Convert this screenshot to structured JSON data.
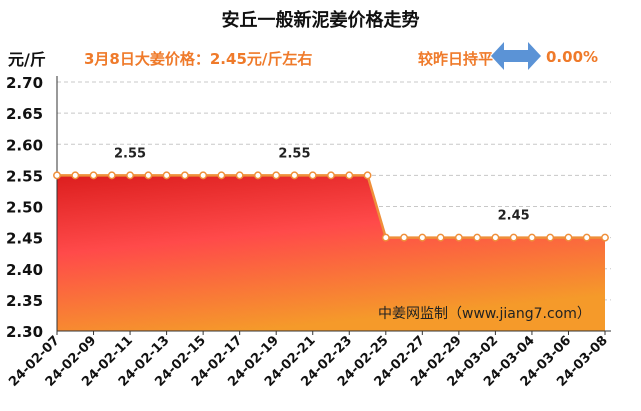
{
  "header": {
    "title": "安丘一般新泥姜价格走势",
    "unit": "元/斤",
    "price_note": "3月8日大姜价格：2.45元/斤左右",
    "change_label": "较昨日持平",
    "change_value": "0.00%",
    "arrow_icon": "left-right-arrow-icon",
    "arrow_color": "#5b93d6"
  },
  "watermark": "中姜网监制（www.jiang7.com）",
  "colors": {
    "line": "#ef8f3a",
    "fill_top": "#dc1e1e",
    "fill_mid": "#ff4a4a",
    "fill_bottom": "#f59a2a",
    "grid": "#c8c8c8",
    "accent": "#ef7a2a"
  },
  "chart_data": {
    "type": "area",
    "x": [
      "2024-02-07",
      "2024-02-08",
      "2024-02-09",
      "2024-02-10",
      "2024-02-11",
      "2024-02-12",
      "2024-02-13",
      "2024-02-14",
      "2024-02-15",
      "2024-02-16",
      "2024-02-17",
      "2024-02-18",
      "2024-02-19",
      "2024-02-20",
      "2024-02-21",
      "2024-02-22",
      "2024-02-23",
      "2024-02-24",
      "2024-02-25",
      "2024-02-26",
      "2024-02-27",
      "2024-02-28",
      "2024-02-29",
      "2024-03-01",
      "2024-03-02",
      "2024-03-03",
      "2024-03-04",
      "2024-03-05",
      "2024-03-06",
      "2024-03-07",
      "2024-03-08"
    ],
    "y": [
      2.55,
      2.55,
      2.55,
      2.55,
      2.55,
      2.55,
      2.55,
      2.55,
      2.55,
      2.55,
      2.55,
      2.55,
      2.55,
      2.55,
      2.55,
      2.55,
      2.55,
      2.55,
      2.45,
      2.45,
      2.45,
      2.45,
      2.45,
      2.45,
      2.45,
      2.45,
      2.45,
      2.45,
      2.45,
      2.45,
      2.45
    ],
    "x_tick_labels": [
      "24-02-07",
      "24-02-09",
      "24-02-11",
      "24-02-13",
      "24-02-15",
      "24-02-17",
      "24-02-19",
      "24-02-21",
      "24-02-23",
      "24-02-25",
      "24-02-27",
      "24-02-29",
      "24-03-02",
      "24-03-04",
      "24-03-06",
      "24-03-08"
    ],
    "y_tick_labels": [
      "2.30",
      "2.35",
      "2.40",
      "2.45",
      "2.50",
      "2.55",
      "2.60",
      "2.65",
      "2.70"
    ],
    "ylim": [
      2.3,
      2.7
    ],
    "annotations": [
      {
        "x": "2024-02-11",
        "y": 2.55,
        "text": "2.55"
      },
      {
        "x": "2024-02-20",
        "y": 2.55,
        "text": "2.55"
      },
      {
        "x": "2024-03-03",
        "y": 2.45,
        "text": "2.45"
      }
    ],
    "grid": true,
    "grid_style": "dashed-horizontal"
  }
}
